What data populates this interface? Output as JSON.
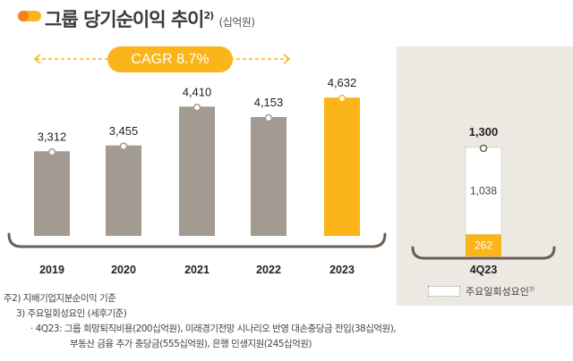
{
  "header": {
    "title": "그룹 당기순이익 추이",
    "title_sup": "2)",
    "unit": "(십억원)"
  },
  "cagr_label": "CAGR 8.7%",
  "colors": {
    "gray_bar": "#a39a91",
    "highlight": "#fbb41a",
    "bracket": "#6b5f55",
    "panel_bg": "#ece8e2"
  },
  "chart_data": [
    {
      "type": "bar",
      "categories": [
        "2019",
        "2020",
        "2021",
        "2022",
        "2023"
      ],
      "values": [
        3312,
        3455,
        4410,
        4153,
        4632
      ],
      "data_labels": [
        "3,312",
        "3,455",
        "4,410",
        "4,153",
        "4,632"
      ],
      "highlight_category": "2023"
    },
    {
      "type": "bar",
      "stacked": true,
      "categories": [
        "4Q23"
      ],
      "total": 1300,
      "total_label": "1,300",
      "series": [
        {
          "values": [
            262
          ],
          "label": "262",
          "color": "#fbb41a"
        },
        {
          "name": "주요일회성요인",
          "name_sup": "3)",
          "values": [
            1038
          ],
          "label": "1,038",
          "color": "#ffffff"
        }
      ]
    }
  ],
  "notes": [
    "주2) 지배기업지분순이익 기준",
    "3) 주요일회성요인 (세후기준)",
    "· 4Q23: 그룹 희망퇴직비용(200십억원), 미래경기전망 시나리오 반영 대손충당금 전입(38십억원),",
    "부동산 금융 추가 충당금(555십억원), 은행 민생지원(245십억원)"
  ]
}
